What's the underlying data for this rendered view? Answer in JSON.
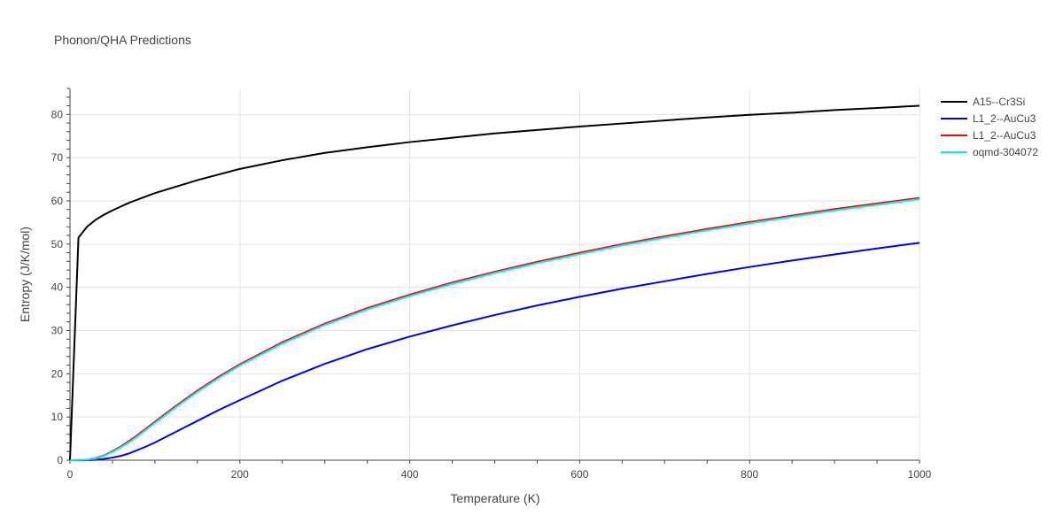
{
  "chart_data": {
    "type": "line",
    "title": "Phonon/QHA Predictions",
    "xlabel": "Temperature (K)",
    "ylabel": "Entropy (J/K/mol)",
    "xlim": [
      0,
      1000
    ],
    "ylim": [
      0,
      86
    ],
    "x_ticks": [
      0,
      200,
      400,
      600,
      800,
      1000
    ],
    "y_ticks": [
      0,
      10,
      20,
      30,
      40,
      50,
      60,
      70,
      80
    ],
    "grid": true,
    "legend_position": "top-right",
    "series": [
      {
        "name": "A15--Cr3Si",
        "color": "#000000",
        "points": [
          [
            0,
            0
          ],
          [
            10,
            51.5
          ],
          [
            20,
            54
          ],
          [
            30,
            55.6
          ],
          [
            40,
            56.8
          ],
          [
            50,
            57.8
          ],
          [
            70,
            59.6
          ],
          [
            100,
            61.8
          ],
          [
            150,
            64.8
          ],
          [
            200,
            67.4
          ],
          [
            250,
            69.4
          ],
          [
            300,
            71.1
          ],
          [
            350,
            72.4
          ],
          [
            400,
            73.6
          ],
          [
            450,
            74.6
          ],
          [
            500,
            75.6
          ],
          [
            550,
            76.4
          ],
          [
            600,
            77.2
          ],
          [
            650,
            77.9
          ],
          [
            700,
            78.6
          ],
          [
            750,
            79.3
          ],
          [
            800,
            79.9
          ],
          [
            850,
            80.4
          ],
          [
            900,
            81
          ],
          [
            950,
            81.5
          ],
          [
            1000,
            82
          ]
        ]
      },
      {
        "name": "L1_2--AuCu3",
        "color": "#0000ee",
        "points": [
          [
            0,
            0
          ],
          [
            20,
            0
          ],
          [
            30,
            0.1
          ],
          [
            40,
            0.3
          ],
          [
            50,
            0.6
          ],
          [
            60,
            1
          ],
          [
            70,
            1.6
          ],
          [
            80,
            2.4
          ],
          [
            90,
            3.2
          ],
          [
            100,
            4.1
          ],
          [
            125,
            6.6
          ],
          [
            150,
            9.1
          ],
          [
            175,
            11.6
          ],
          [
            200,
            13.9
          ],
          [
            250,
            18.4
          ],
          [
            300,
            22.3
          ],
          [
            350,
            25.7
          ],
          [
            400,
            28.6
          ],
          [
            450,
            31.2
          ],
          [
            500,
            33.6
          ],
          [
            550,
            35.8
          ],
          [
            600,
            37.8
          ],
          [
            650,
            39.7
          ],
          [
            700,
            41.4
          ],
          [
            750,
            43.1
          ],
          [
            800,
            44.7
          ],
          [
            850,
            46.2
          ],
          [
            900,
            47.6
          ],
          [
            950,
            49
          ],
          [
            1000,
            50.3
          ]
        ]
      },
      {
        "name": "L1_2--AuCu3",
        "color": "#ff0000",
        "points": [
          [
            0,
            0
          ],
          [
            20,
            0.1
          ],
          [
            30,
            0.5
          ],
          [
            40,
            1.1
          ],
          [
            50,
            2.1
          ],
          [
            60,
            3.2
          ],
          [
            70,
            4.5
          ],
          [
            80,
            5.9
          ],
          [
            90,
            7.4
          ],
          [
            100,
            8.9
          ],
          [
            125,
            12.6
          ],
          [
            150,
            16.1
          ],
          [
            175,
            19.3
          ],
          [
            200,
            22.2
          ],
          [
            250,
            27.3
          ],
          [
            300,
            31.6
          ],
          [
            350,
            35.2
          ],
          [
            400,
            38.3
          ],
          [
            450,
            41.1
          ],
          [
            500,
            43.6
          ],
          [
            550,
            45.9
          ],
          [
            600,
            48
          ],
          [
            650,
            50
          ],
          [
            700,
            51.8
          ],
          [
            750,
            53.5
          ],
          [
            800,
            55.1
          ],
          [
            850,
            56.6
          ],
          [
            900,
            58.1
          ],
          [
            950,
            59.4
          ],
          [
            1000,
            60.7
          ]
        ]
      },
      {
        "name": "oqmd-304072",
        "color": "#00eeee",
        "points": [
          [
            0,
            0
          ],
          [
            20,
            0.1
          ],
          [
            30,
            0.4
          ],
          [
            40,
            1
          ],
          [
            50,
            1.9
          ],
          [
            60,
            3
          ],
          [
            70,
            4.2
          ],
          [
            80,
            5.6
          ],
          [
            90,
            7.1
          ],
          [
            100,
            8.6
          ],
          [
            125,
            12.3
          ],
          [
            150,
            15.8
          ],
          [
            175,
            19
          ],
          [
            200,
            21.9
          ],
          [
            250,
            27
          ],
          [
            300,
            31.3
          ],
          [
            350,
            34.9
          ],
          [
            400,
            38
          ],
          [
            450,
            40.8
          ],
          [
            500,
            43.3
          ],
          [
            550,
            45.6
          ],
          [
            600,
            47.7
          ],
          [
            650,
            49.7
          ],
          [
            700,
            51.5
          ],
          [
            750,
            53.2
          ],
          [
            800,
            54.8
          ],
          [
            850,
            56.3
          ],
          [
            900,
            57.8
          ],
          [
            950,
            59.1
          ],
          [
            1000,
            60.4
          ]
        ]
      }
    ]
  }
}
